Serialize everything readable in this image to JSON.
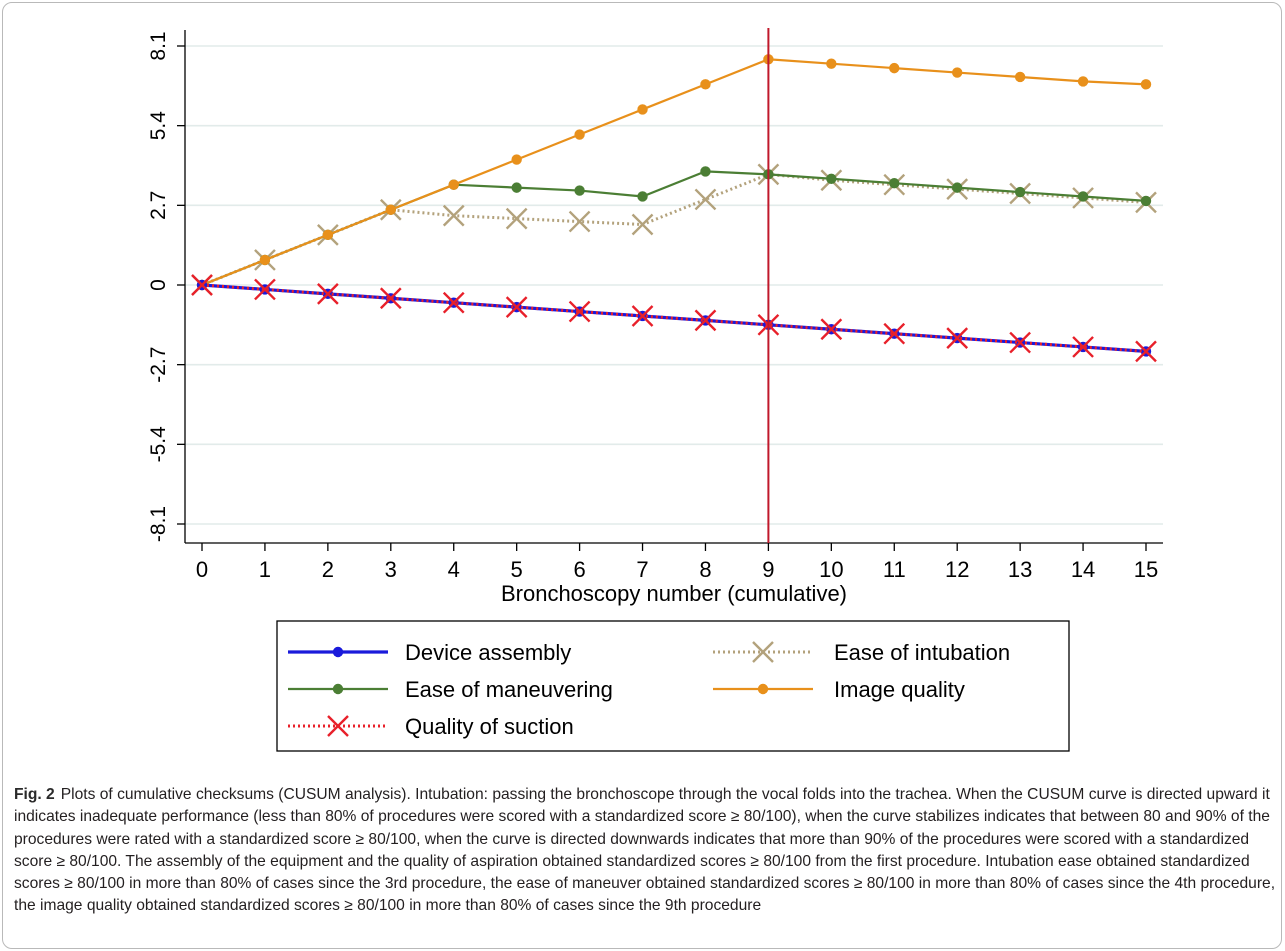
{
  "chart_data": {
    "type": "line",
    "title": "",
    "xlabel": "Bronchoscopy number (cumulative)",
    "ylabel": "",
    "x": [
      0,
      1,
      2,
      3,
      4,
      5,
      6,
      7,
      8,
      9,
      10,
      11,
      12,
      13,
      14,
      15
    ],
    "x_ticks": [
      "0",
      "1",
      "2",
      "3",
      "4",
      "5",
      "6",
      "7",
      "8",
      "9",
      "10",
      "11",
      "12",
      "13",
      "14",
      "15"
    ],
    "xlim": [
      0,
      15
    ],
    "y_ticks": [
      -8.1,
      -5.4,
      -2.7,
      0,
      2.7,
      5.4,
      8.1
    ],
    "y_tick_labels": [
      "-8.1",
      "-5.4",
      "-2.7",
      "0",
      "2.7",
      "5.4",
      "8.1"
    ],
    "ylim": [
      -8.1,
      8.1
    ],
    "grid": "horizontal",
    "reference_line": {
      "axis": "x",
      "value": 9,
      "color": "#c0182b"
    },
    "legend_position": "bottom",
    "series": [
      {
        "name": "Device assembly",
        "color": "#1a1adb",
        "style": "solid",
        "marker": "circle",
        "values": [
          0,
          -0.15,
          -0.3,
          -0.45,
          -0.6,
          -0.75,
          -0.9,
          -1.05,
          -1.2,
          -1.35,
          -1.5,
          -1.65,
          -1.8,
          -1.95,
          -2.1,
          -2.25
        ]
      },
      {
        "name": "Ease of intubation",
        "color": "#b3a27c",
        "style": "dotted",
        "marker": "x",
        "values": [
          0,
          0.85,
          1.7,
          2.55,
          2.35,
          2.25,
          2.15,
          2.05,
          2.9,
          3.75,
          3.55,
          3.4,
          3.25,
          3.1,
          2.95,
          2.8
        ]
      },
      {
        "name": "Ease of maneuvering",
        "color": "#4b7e34",
        "style": "solid",
        "marker": "circle",
        "values": [
          0,
          0.85,
          1.7,
          2.55,
          3.4,
          3.3,
          3.2,
          3.0,
          3.85,
          3.75,
          3.6,
          3.45,
          3.3,
          3.15,
          3.0,
          2.85
        ]
      },
      {
        "name": "Image quality",
        "color": "#e8901b",
        "style": "solid",
        "marker": "circle",
        "values": [
          0,
          0.85,
          1.7,
          2.55,
          3.4,
          4.25,
          5.1,
          5.95,
          6.8,
          7.65,
          7.5,
          7.35,
          7.2,
          7.05,
          6.9,
          6.8
        ]
      },
      {
        "name": "Quality of suction",
        "color": "#e8202a",
        "style": "dotted",
        "marker": "x",
        "values": [
          0,
          -0.15,
          -0.3,
          -0.45,
          -0.6,
          -0.75,
          -0.9,
          -1.05,
          -1.2,
          -1.35,
          -1.5,
          -1.65,
          -1.8,
          -1.95,
          -2.1,
          -2.25
        ]
      }
    ]
  },
  "caption": {
    "label": "Fig. 2",
    "text": "Plots of cumulative checksums (CUSUM analysis). Intubation: passing the bronchoscope through the vocal folds into the trachea. When the CUSUM curve is directed upward it indicates inadequate performance (less than 80% of procedures were scored with a standardized score ≥ 80/100), when the curve stabilizes indicates that between 80 and 90% of the procedures were rated with a standardized score ≥ 80/100, when the curve is directed downwards indicates that more than 90% of the procedures were scored with a standardized score ≥ 80/100. The assembly of the equipment and the quality of aspiration obtained standardized scores ≥ 80/100 from the first procedure. Intubation ease obtained standardized scores ≥ 80/100 in more than 80% of cases since the 3rd procedure, the ease of maneuver obtained standardized scores ≥ 80/100 in more than 80% of cases since the 4th procedure, the image quality obtained standardized scores ≥ 80/100 in more than 80% of cases since the 9th procedure"
  }
}
